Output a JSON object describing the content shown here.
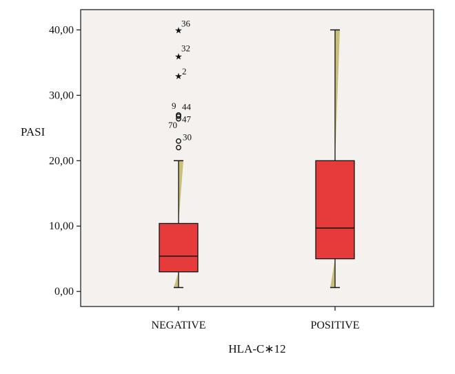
{
  "chart_data": {
    "type": "box",
    "title": "",
    "xlabel": "HLA-C∗12",
    "ylabel": "PASI",
    "ylim": [
      -2.3,
      43.1
    ],
    "yticks": [
      0,
      10,
      20,
      30,
      40
    ],
    "ytick_labels": [
      "0,00",
      "10,00",
      "20,00",
      "30,00",
      "40,00"
    ],
    "categories": [
      "NEGATIVE",
      "POSITIVE"
    ],
    "grid": false,
    "colors": {
      "box_fill": "#e63b3b",
      "whisker_shade": "#c8c07a",
      "plot_background": "#f4f1ef",
      "line": "#111111"
    },
    "boxes": [
      {
        "category": "NEGATIVE",
        "whisker_low": 0.6,
        "q1": 3.0,
        "median": 5.4,
        "q3": 10.4,
        "whisker_high": 20.0,
        "outliers": [
          {
            "label": "70",
            "value": 23.0,
            "marker": "circle"
          },
          {
            "label": "30",
            "value": 22.0,
            "marker": "circle"
          },
          {
            "label": "9",
            "value": 27.0,
            "marker": "circle"
          },
          {
            "label": "44",
            "value": 26.8,
            "marker": "circle"
          },
          {
            "label": "47",
            "value": 26.4,
            "marker": "circle"
          },
          {
            "label": "2",
            "value": 33.0,
            "marker": "star"
          },
          {
            "label": "32",
            "value": 36.0,
            "marker": "star"
          },
          {
            "label": "36",
            "value": 40.0,
            "marker": "star"
          }
        ]
      },
      {
        "category": "POSITIVE",
        "whisker_low": 0.6,
        "q1": 5.0,
        "median": 9.7,
        "q3": 20.0,
        "whisker_high": 40.0,
        "outliers": []
      }
    ]
  }
}
